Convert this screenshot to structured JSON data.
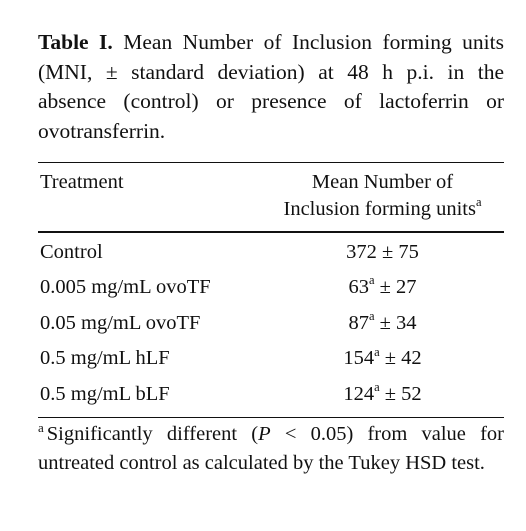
{
  "caption": {
    "label": "Table I.",
    "text": "Mean Number of Inclusion forming units (MNI, ± standard deviation) at 48 h p.i. in the absence (control) or presence of lactoferrin or ovotransferrin."
  },
  "table": {
    "headers": {
      "treatment": "Treatment",
      "mean_line1": "Mean Number of",
      "mean_line2": "Inclusion forming units",
      "mean_sup": "a"
    },
    "rows": [
      {
        "treatment": "Control",
        "mean": "372",
        "sup": "",
        "sd": "± 75"
      },
      {
        "treatment": "0.005 mg/mL ovoTF",
        "mean": "63",
        "sup": "a",
        "sd": "± 27"
      },
      {
        "treatment": "0.05 mg/mL ovoTF",
        "mean": "87",
        "sup": "a",
        "sd": "± 34"
      },
      {
        "treatment": "0.5 mg/mL hLF",
        "mean": "154",
        "sup": "a",
        "sd": "± 42"
      },
      {
        "treatment": "0.5 mg/mL bLF",
        "mean": "124",
        "sup": "a",
        "sd": "± 52"
      }
    ]
  },
  "footnote": {
    "marker": "a",
    "text_before": "Significantly different (",
    "p_symbol": "P",
    "text_after": " < 0.05) from value for untreated control as calculated by the Tukey HSD test."
  }
}
